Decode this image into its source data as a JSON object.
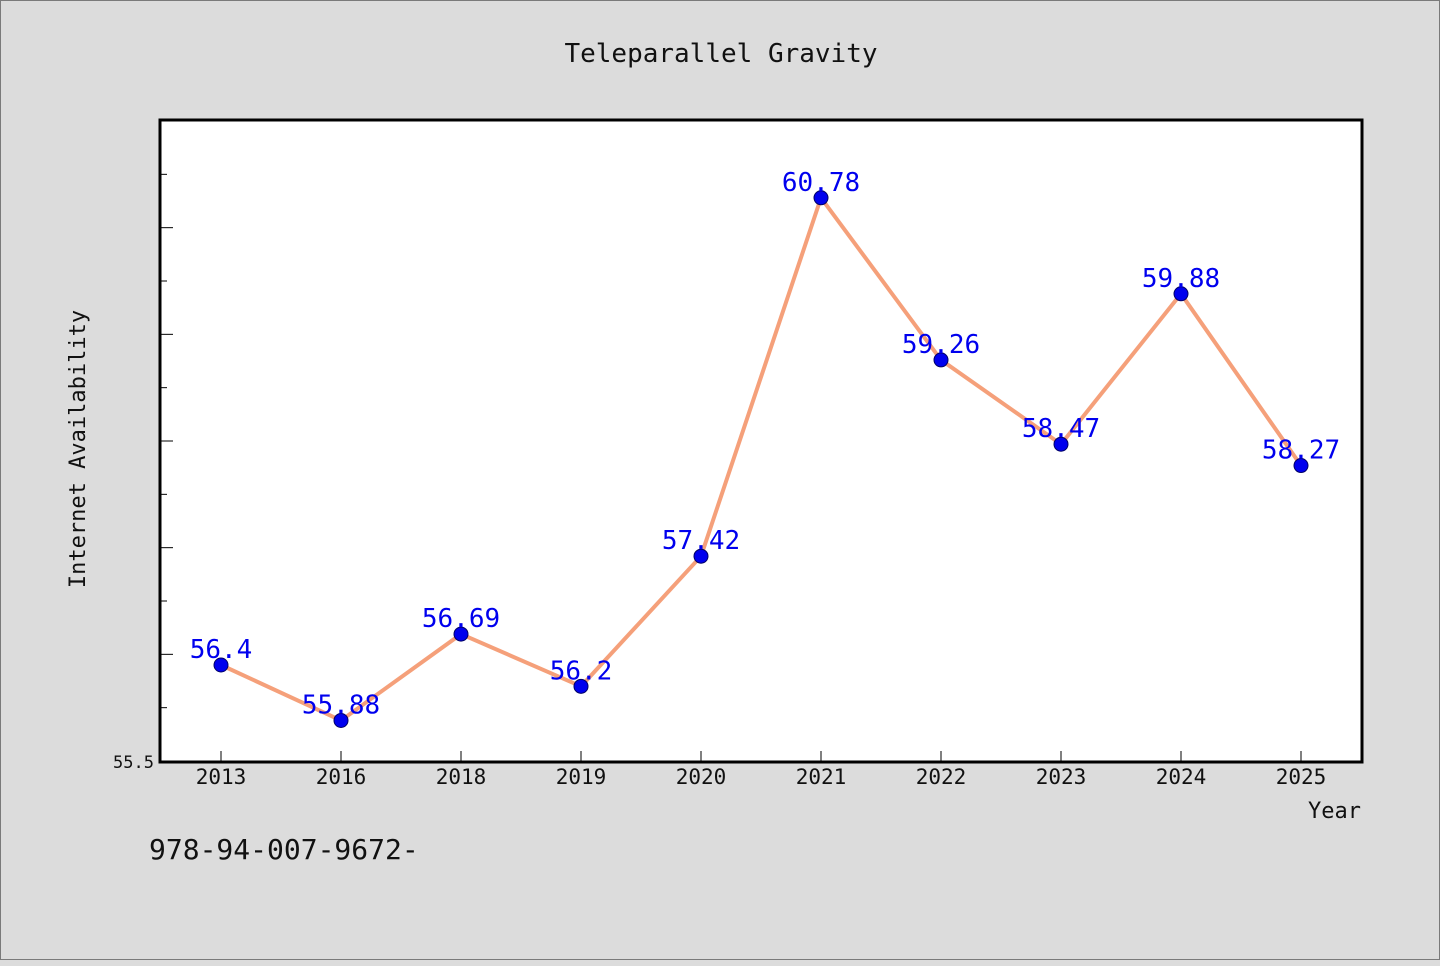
{
  "chart_data": {
    "type": "line",
    "title": "Teleparallel Gravity",
    "xlabel": "Year",
    "ylabel": "Internet Availability",
    "categories": [
      "2013",
      "2016",
      "2018",
      "2019",
      "2020",
      "2021",
      "2022",
      "2023",
      "2024",
      "2025"
    ],
    "series": [
      {
        "values": [
          56.4,
          55.88,
          56.69,
          56.2,
          57.42,
          60.78,
          59.26,
          58.47,
          59.88,
          58.27
        ],
        "data_labels": [
          "56.4",
          "55.88",
          "56.69",
          "56.2",
          "57.42",
          "60.78",
          "59.26",
          "58.47",
          "59.88",
          "58.27"
        ]
      }
    ],
    "ylim": [
      55.5,
      61.5
    ],
    "y_tick_label": "55.5",
    "grid": false,
    "legend": "none",
    "colors": {
      "line": "#f5a07a",
      "marker": "#0000ee",
      "marker_edge": "#000066",
      "data_label": "#0000ee",
      "plot_background": "#ffffff",
      "figure_background": "#dcdcdc"
    }
  },
  "footer": {
    "isbn_text": "978-94-007-9672-"
  }
}
